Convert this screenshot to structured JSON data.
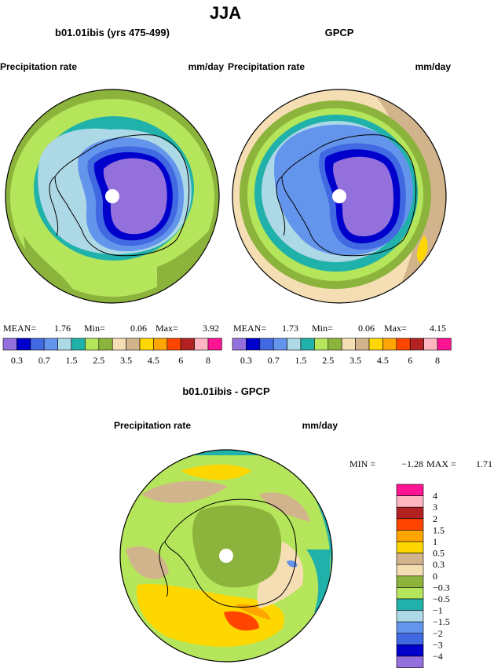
{
  "chart_data": {
    "type": "heatmap",
    "title": "JJA",
    "colors": {
      "main_scale": [
        "#9370db",
        "#0000cd",
        "#4169e1",
        "#6495ed",
        "#add8e6",
        "#20b2aa",
        "#b4e55a",
        "#8cb43c",
        "#f5deb3",
        "#d2b48c",
        "#ffd700",
        "#ffa500",
        "#ff4500",
        "#b22222",
        "#ffb6c1",
        "#ff1493"
      ],
      "diff_scale": [
        "#9370db",
        "#0000cd",
        "#4169e1",
        "#6495ed",
        "#add8e6",
        "#20b2aa",
        "#b4e55a",
        "#8cb43c",
        "#f5deb3",
        "#d2b48c",
        "#ffd700",
        "#ffa500",
        "#ff4500",
        "#b22222",
        "#ffb6c1",
        "#ff1493"
      ],
      "outline": "#000000",
      "pole": "#ffffff"
    },
    "panels": [
      {
        "title": "b01.01ibis (yrs 475-499)",
        "left_label": "Precipitation rate",
        "right_label": "mm/day",
        "stats": {
          "mean_label": "MEAN=",
          "mean": "1.76",
          "min_label": "Min=",
          "min": "0.06",
          "max_label": "Max=",
          "max": "3.92"
        },
        "colorbar_ticks": [
          "0.3",
          "0.7",
          "1.5",
          "2.5",
          "3.5",
          "4.5",
          "6",
          "8"
        ]
      },
      {
        "title": "GPCP",
        "left_label": "Precipitation rate",
        "right_label": "mm/day",
        "stats": {
          "mean_label": "MEAN=",
          "mean": "1.73",
          "min_label": "Min=",
          "min": "0.06",
          "max_label": "Max=",
          "max": "4.15"
        },
        "colorbar_ticks": [
          "0.3",
          "0.7",
          "1.5",
          "2.5",
          "3.5",
          "4.5",
          "6",
          "8"
        ]
      },
      {
        "title": "b01.01ibis - GPCP",
        "left_label": "Precipitation rate",
        "right_label": "mm/day",
        "stats": {
          "min_label": "MIN =",
          "min": "−1.28",
          "max_label": "MAX =",
          "max": "1.71"
        },
        "colorbar_ticks": [
          "4",
          "3",
          "2",
          "1.5",
          "1",
          "0.5",
          "0.3",
          "0",
          "−0.3",
          "−0.5",
          "−1",
          "−1.5",
          "−2",
          "−3",
          "−4"
        ]
      }
    ]
  }
}
